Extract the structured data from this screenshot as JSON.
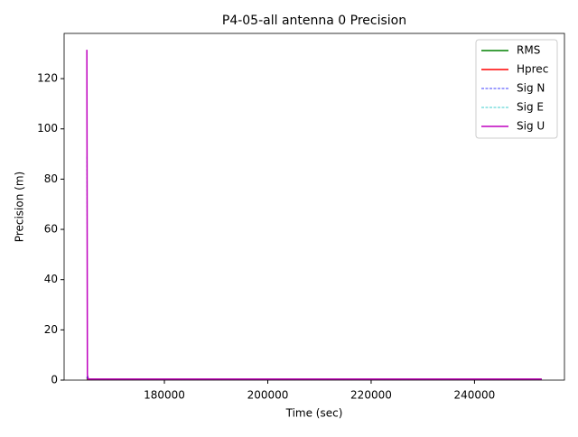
{
  "chart_data": {
    "type": "line",
    "title": "P4-05-all antenna 0 Precision",
    "x_label": "Time (sec)",
    "y_label": "Precision (m)",
    "x": [
      165000,
      165100,
      165300,
      170000,
      200000,
      230000,
      253000
    ],
    "series": [
      {
        "name": "RMS",
        "color": "#008000",
        "dashed": false,
        "values": [
          0.5,
          0.4,
          0.3,
          0.3,
          0.3,
          0.3,
          0.3
        ]
      },
      {
        "name": "Hprec",
        "color": "#ff0000",
        "dashed": false,
        "values": [
          1.0,
          0.5,
          0.3,
          0.3,
          0.3,
          0.3,
          0.3
        ]
      },
      {
        "name": "Sig N",
        "color": "#0000ff",
        "dashed": true,
        "values": [
          1.5,
          0.4,
          0.3,
          0.3,
          0.3,
          0.3,
          0.3
        ]
      },
      {
        "name": "Sig E",
        "color": "#00bfbf",
        "dashed": true,
        "values": [
          89,
          0.5,
          0.3,
          0.3,
          0.3,
          0.3,
          0.3
        ]
      },
      {
        "name": "Sig U",
        "color": "#bf00bf",
        "dashed": false,
        "values": [
          131.5,
          2,
          0.4,
          0.4,
          0.4,
          0.4,
          0.4
        ]
      }
    ],
    "xlim": [
      160600,
      257400
    ],
    "ylim": [
      0,
      138
    ],
    "xticks": [
      180000,
      200000,
      220000,
      240000
    ],
    "yticks": [
      0,
      20,
      40,
      60,
      80,
      100,
      120
    ],
    "legend": "upper right"
  }
}
